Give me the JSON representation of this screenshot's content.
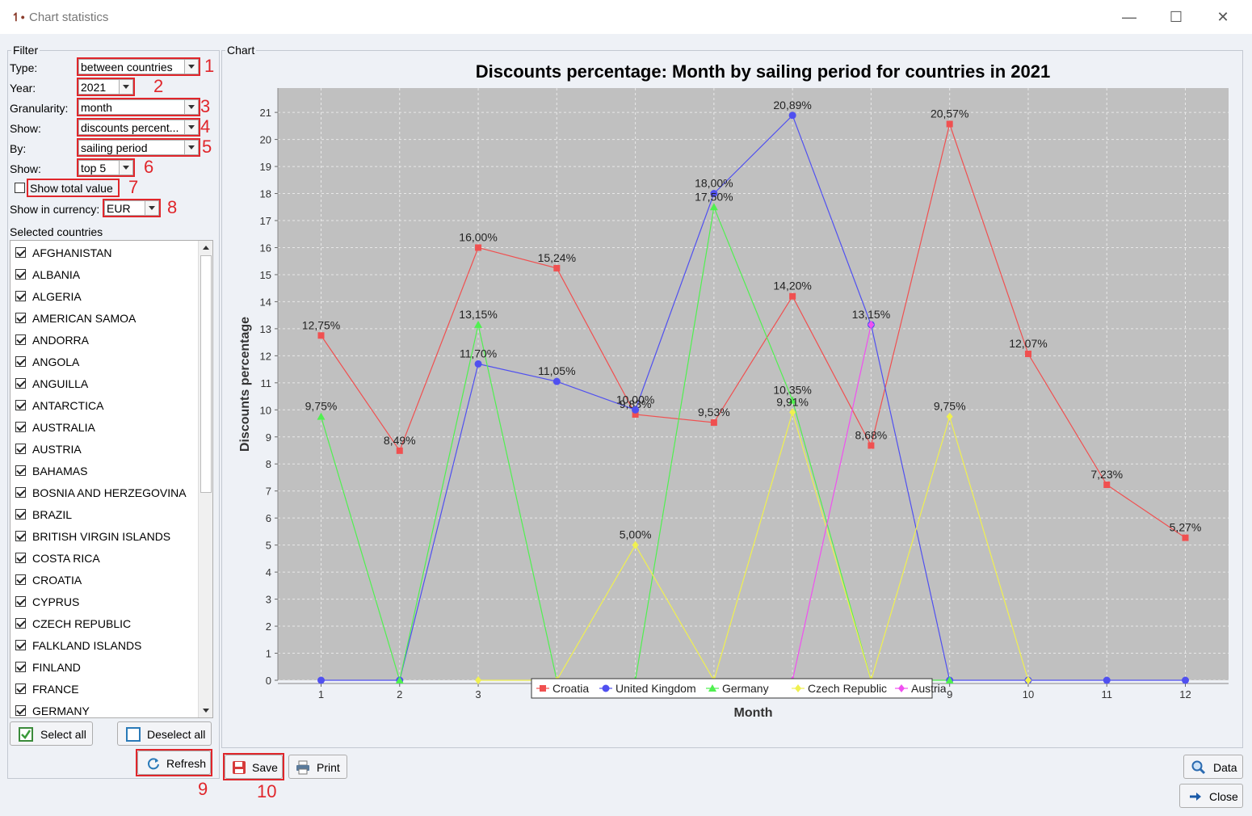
{
  "window": {
    "title": "Chart statistics"
  },
  "filter": {
    "legend": "Filter",
    "type_label": "Type:",
    "type_value": "between countries",
    "year_label": "Year:",
    "year_value": "2021",
    "granularity_label": "Granularity:",
    "granularity_value": "month",
    "show_label": "Show:",
    "show_value": "discounts percent...",
    "by_label": "By:",
    "by_value": "sailing period",
    "show2_label": "Show:",
    "show2_value": "top 5",
    "total_label": "Show total value",
    "currency_label": "Show in currency:",
    "currency_value": "EUR",
    "countries_label": "Selected countries",
    "countries": [
      "AFGHANISTAN",
      "ALBANIA",
      "ALGERIA",
      "AMERICAN SAMOA",
      "ANDORRA",
      "ANGOLA",
      "ANGUILLA",
      "ANTARCTICA",
      "AUSTRALIA",
      "AUSTRIA",
      "BAHAMAS",
      "BOSNIA AND HERZEGOVINA",
      "BRAZIL",
      "BRITISH VIRGIN ISLANDS",
      "COSTA RICA",
      "CROATIA",
      "CYPRUS",
      "CZECH REPUBLIC",
      "FALKLAND ISLANDS",
      "FINLAND",
      "FRANCE",
      "GERMANY"
    ],
    "select_all": "Select all",
    "deselect_all": "Deselect all",
    "refresh": "Refresh"
  },
  "annotations": [
    "1",
    "2",
    "3",
    "4",
    "5",
    "6",
    "7",
    "8",
    "9",
    "10"
  ],
  "chart_panel": {
    "legend": "Chart"
  },
  "buttons": {
    "save": "Save",
    "print": "Print",
    "data": "Data",
    "close": "Close"
  },
  "colors": {
    "Croatia": "#f05050",
    "United Kingdom": "#5050f0",
    "Germany": "#50f050",
    "Czech Republic": "#f0f050",
    "Austria": "#f050f0"
  },
  "chart_data": {
    "type": "line",
    "title": "Discounts percentage: Month by sailing period for countries in 2021",
    "xlabel": "Month",
    "ylabel": "Discounts percentage",
    "x": [
      1,
      2,
      3,
      4,
      5,
      6,
      7,
      8,
      9,
      10,
      11,
      12
    ],
    "ylim": [
      0,
      21.9
    ],
    "yticks": [
      0,
      1,
      2,
      3,
      4,
      5,
      6,
      7,
      8,
      9,
      10,
      11,
      12,
      13,
      14,
      15,
      16,
      17,
      18,
      19,
      20,
      21
    ],
    "grid": true,
    "legend_position": "bottom",
    "series": [
      {
        "name": "Croatia",
        "marker": "square",
        "values": [
          12.75,
          8.49,
          16.0,
          15.24,
          9.83,
          9.53,
          14.2,
          8.68,
          20.57,
          12.07,
          7.23,
          5.27
        ],
        "labels": [
          "12,75%",
          "8,49%",
          "16,00%",
          "15,24%",
          "9,83%",
          "9,53%",
          "14,20%",
          "8,68%",
          "20,57%",
          "12,07%",
          "7,23%",
          "5,27%"
        ]
      },
      {
        "name": "United Kingdom",
        "marker": "circle",
        "values": [
          0,
          0,
          11.7,
          11.05,
          10.0,
          18.0,
          20.89,
          13.15,
          0,
          0,
          0,
          0
        ],
        "labels": [
          "",
          "",
          "11,70%",
          "11,05%",
          "10,00%",
          "18,00%",
          "20,89%",
          "13,15%",
          "",
          "",
          "",
          ""
        ]
      },
      {
        "name": "Germany",
        "marker": "triangle",
        "values": [
          9.75,
          0,
          13.15,
          0,
          0,
          17.5,
          10.35,
          0,
          0,
          null,
          null,
          null
        ],
        "labels": [
          "9,75%",
          "",
          "13,15%",
          "",
          "",
          "17,50%",
          "10,35%",
          "",
          "",
          "",
          "",
          ""
        ]
      },
      {
        "name": "Czech Republic",
        "marker": "diamond",
        "values": [
          null,
          null,
          0,
          0,
          5.0,
          0,
          9.91,
          0,
          9.75,
          0,
          null,
          null
        ],
        "labels": [
          "",
          "",
          "",
          "",
          "5,00%",
          "",
          "9,91%",
          "",
          "9,75%",
          "",
          "",
          ""
        ]
      },
      {
        "name": "Austria",
        "marker": "diamond",
        "values": [
          null,
          null,
          null,
          null,
          null,
          null,
          0,
          13.15,
          null,
          null,
          null,
          null
        ],
        "labels": [
          "",
          "",
          "",
          "",
          "",
          "",
          "",
          "",
          "",
          "",
          "",
          ""
        ]
      }
    ]
  }
}
